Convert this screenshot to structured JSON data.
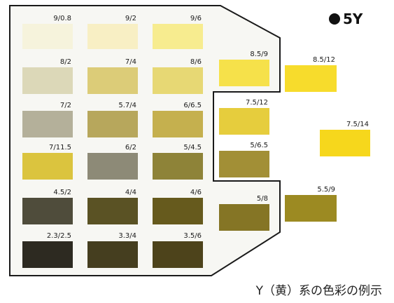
{
  "chart": {
    "hue": "5Y",
    "caption": "Y（黄）系の色彩の例示",
    "border_color": "#1a1a1a",
    "background": "#f7f7f3",
    "swatches": [
      {
        "label": "9/0.8",
        "color": "#f6f3dc"
      },
      {
        "label": "9/2",
        "color": "#f8efc4"
      },
      {
        "label": "9/6",
        "color": "#f7ec8f"
      },
      {
        "label": "8/2",
        "color": "#dcd8b8"
      },
      {
        "label": "7/4",
        "color": "#dccc78"
      },
      {
        "label": "8/6",
        "color": "#e7d874"
      },
      {
        "label": "8.5/9",
        "color": "#f6e14a"
      },
      {
        "label": "8.5/12",
        "color": "#f7dc2c"
      },
      {
        "label": "7/2",
        "color": "#b4b09a"
      },
      {
        "label": "5.7/4",
        "color": "#b7a75c"
      },
      {
        "label": "6/6.5",
        "color": "#c5b04e"
      },
      {
        "label": "7.5/12",
        "color": "#e6cd3d"
      },
      {
        "label": "7.5/14",
        "color": "#f6d71c"
      },
      {
        "label": "7/11.5",
        "color": "#dbc43e"
      },
      {
        "label": "6/2",
        "color": "#8d8a77"
      },
      {
        "label": "5/4.5",
        "color": "#8e8338"
      },
      {
        "label": "5/6.5",
        "color": "#a28f36"
      },
      {
        "label": "4.5/2",
        "color": "#4f4c3b"
      },
      {
        "label": "4/4",
        "color": "#5a5224"
      },
      {
        "label": "4/6",
        "color": "#665a1d"
      },
      {
        "label": "5/8",
        "color": "#857525"
      },
      {
        "label": "5.5/9",
        "color": "#9c8a22"
      },
      {
        "label": "2.3/2.5",
        "color": "#2d2a21"
      },
      {
        "label": "3.3/4",
        "color": "#453e1f"
      },
      {
        "label": "3.5/6",
        "color": "#4d431b"
      }
    ]
  }
}
